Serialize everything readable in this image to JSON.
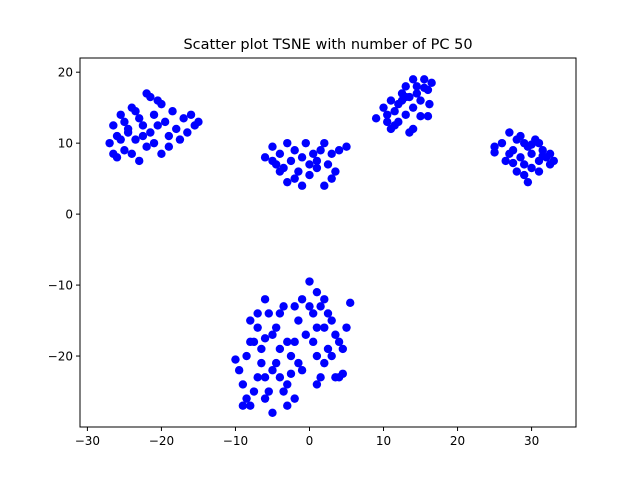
{
  "chart_data": {
    "type": "scatter",
    "title": "Scatter plot TSNE with  number of PC 50",
    "xlabel": "",
    "ylabel": "",
    "xlim": [
      -31,
      36
    ],
    "ylim": [
      -30,
      22
    ],
    "x_ticks": [
      -30,
      -20,
      -10,
      0,
      10,
      20,
      30
    ],
    "x_tick_labels": [
      "−30",
      "−20",
      "−10",
      "0",
      "10",
      "20",
      "30"
    ],
    "y_ticks": [
      20,
      10,
      0,
      -10,
      -20
    ],
    "y_tick_labels": [
      "20",
      "10",
      "0",
      "−10",
      "−20"
    ],
    "grid": false,
    "legend": "none",
    "marker_color": "#0000ff",
    "series": [
      {
        "points": [
          [
            -27,
            10
          ],
          [
            -26.5,
            12.5
          ],
          [
            -26,
            11
          ],
          [
            -25.5,
            14
          ],
          [
            -25,
            13
          ],
          [
            -24.5,
            12
          ],
          [
            -24,
            15
          ],
          [
            -23.5,
            10.5
          ],
          [
            -23,
            13.5
          ],
          [
            -22.5,
            11
          ],
          [
            -22,
            17
          ],
          [
            -21.5,
            16.5
          ],
          [
            -21,
            14
          ],
          [
            -20.5,
            12.5
          ],
          [
            -20,
            15.5
          ],
          [
            -19.5,
            13
          ],
          [
            -19,
            11
          ],
          [
            -18.5,
            14.5
          ],
          [
            -18,
            12
          ],
          [
            -17.5,
            10.5
          ],
          [
            -17,
            13.5
          ],
          [
            -16.5,
            11.5
          ],
          [
            -16,
            14
          ],
          [
            -15.5,
            12.5
          ],
          [
            -15,
            13
          ],
          [
            -26,
            8
          ],
          [
            -25,
            9
          ],
          [
            -24,
            8.5
          ],
          [
            -23,
            7.5
          ],
          [
            -22,
            9.5
          ],
          [
            -21,
            10
          ],
          [
            -20,
            8.5
          ],
          [
            -19,
            9.5
          ],
          [
            -24.5,
            11.5
          ],
          [
            -23.5,
            14.5
          ],
          [
            -22.5,
            12.5
          ],
          [
            -21.5,
            11.5
          ],
          [
            -20.5,
            16
          ],
          [
            -25.5,
            10.5
          ],
          [
            -26.5,
            8.5
          ]
        ]
      },
      {
        "points": [
          [
            -6,
            8
          ],
          [
            -5,
            9.5
          ],
          [
            -4.5,
            7
          ],
          [
            -4,
            8.5
          ],
          [
            -3.5,
            6.5
          ],
          [
            -3,
            10
          ],
          [
            -2.5,
            7.5
          ],
          [
            -2,
            9
          ],
          [
            -1.5,
            6
          ],
          [
            -1,
            8
          ],
          [
            -0.5,
            10
          ],
          [
            0,
            7
          ],
          [
            0.5,
            8.5
          ],
          [
            1,
            6.5
          ],
          [
            1.5,
            9
          ],
          [
            2,
            4
          ],
          [
            2.5,
            7
          ],
          [
            3,
            8.5
          ],
          [
            3.5,
            6
          ],
          [
            4,
            9
          ],
          [
            5,
            9.5
          ],
          [
            -3,
            4.5
          ],
          [
            -1,
            4
          ],
          [
            2,
            10
          ],
          [
            0,
            5.5
          ],
          [
            -2,
            5
          ],
          [
            1,
            7.5
          ],
          [
            -4,
            6
          ],
          [
            3,
            5
          ],
          [
            -5,
            7.5
          ]
        ]
      },
      {
        "points": [
          [
            9,
            13.5
          ],
          [
            10,
            15
          ],
          [
            10.5,
            14
          ],
          [
            11,
            16
          ],
          [
            11.5,
            12.5
          ],
          [
            12,
            15.5
          ],
          [
            12.5,
            17
          ],
          [
            13,
            14
          ],
          [
            13.5,
            16.5
          ],
          [
            14,
            12
          ],
          [
            14.5,
            18
          ],
          [
            15,
            16
          ],
          [
            15.5,
            19
          ],
          [
            16,
            17.5
          ],
          [
            16.5,
            18.5
          ],
          [
            13,
            18
          ],
          [
            12,
            13
          ],
          [
            14,
            15
          ],
          [
            15,
            13.8
          ],
          [
            11,
            12
          ],
          [
            13.5,
            11.5
          ],
          [
            16,
            13.8
          ],
          [
            14.5,
            17
          ],
          [
            12.5,
            16
          ],
          [
            15.5,
            17.8
          ],
          [
            10.5,
            13
          ],
          [
            13,
            16.5
          ],
          [
            14,
            19
          ],
          [
            11.5,
            14.5
          ],
          [
            16.2,
            15.5
          ]
        ]
      },
      {
        "points": [
          [
            25,
            9.5
          ],
          [
            26,
            10
          ],
          [
            27,
            11.5
          ],
          [
            27.5,
            9
          ],
          [
            28,
            10.5
          ],
          [
            28.5,
            8
          ],
          [
            29,
            7
          ],
          [
            29.5,
            9.5
          ],
          [
            30,
            8.5
          ],
          [
            30.5,
            10.5
          ],
          [
            31,
            7.5
          ],
          [
            31.5,
            9
          ],
          [
            32,
            8
          ],
          [
            32.5,
            7
          ],
          [
            33,
            7.5
          ],
          [
            28,
            6
          ],
          [
            29.5,
            4.5
          ],
          [
            30,
            6.5
          ],
          [
            31,
            6
          ],
          [
            27,
            8.5
          ],
          [
            26.5,
            7.5
          ],
          [
            29,
            10
          ],
          [
            31.5,
            8.2
          ],
          [
            32.5,
            8.5
          ],
          [
            28.5,
            11
          ],
          [
            30,
            9.8
          ],
          [
            27.5,
            7.2
          ],
          [
            31,
            10
          ],
          [
            29,
            5.5
          ],
          [
            25,
            8.7
          ]
        ]
      },
      {
        "points": [
          [
            -10,
            -20.5
          ],
          [
            -9.5,
            -22
          ],
          [
            -9,
            -24
          ],
          [
            -8.5,
            -26
          ],
          [
            -8,
            -27
          ],
          [
            -7.5,
            -18
          ],
          [
            -7,
            -16
          ],
          [
            -6.5,
            -19
          ],
          [
            -6,
            -12
          ],
          [
            -5.5,
            -14
          ],
          [
            -5,
            -17
          ],
          [
            -4.5,
            -21
          ],
          [
            -4,
            -23
          ],
          [
            -3.5,
            -25
          ],
          [
            -3,
            -27
          ],
          [
            -2.5,
            -20
          ],
          [
            -2,
            -18
          ],
          [
            -1.5,
            -15
          ],
          [
            -1,
            -12
          ],
          [
            -0.5,
            -17
          ],
          [
            0,
            -9.5
          ],
          [
            0.5,
            -14
          ],
          [
            1,
            -11
          ],
          [
            1.5,
            -13
          ],
          [
            2,
            -16
          ],
          [
            2.5,
            -19
          ],
          [
            3,
            -20
          ],
          [
            3.5,
            -23
          ],
          [
            4,
            -18
          ],
          [
            4.5,
            -22.5
          ],
          [
            5,
            -16
          ],
          [
            5.5,
            -12.5
          ],
          [
            -8,
            -15
          ],
          [
            -7,
            -23
          ],
          [
            -6,
            -26
          ],
          [
            -5,
            -28
          ],
          [
            -4,
            -19
          ],
          [
            -3,
            -24
          ],
          [
            -2,
            -26
          ],
          [
            -1,
            -22
          ],
          [
            1,
            -24
          ],
          [
            2,
            -21
          ],
          [
            3,
            -15
          ],
          [
            -9,
            -27
          ],
          [
            -6.5,
            -21
          ],
          [
            -5.5,
            -25
          ],
          [
            -4.5,
            -16
          ],
          [
            -3.5,
            -13
          ],
          [
            -2.5,
            -22.5
          ],
          [
            0.5,
            -18
          ],
          [
            1.5,
            -23
          ],
          [
            2.5,
            -14
          ],
          [
            3.5,
            -17
          ],
          [
            4.5,
            -19
          ],
          [
            -7.5,
            -25
          ],
          [
            -8.5,
            -20
          ],
          [
            -6,
            -17.5
          ],
          [
            -1.5,
            -21
          ],
          [
            0,
            -13
          ],
          [
            1,
            -20
          ],
          [
            -4,
            -14
          ],
          [
            -3,
            -18
          ],
          [
            -7,
            -14
          ],
          [
            -5,
            -22
          ],
          [
            2,
            -12
          ],
          [
            -8,
            -18
          ],
          [
            -6,
            -23
          ],
          [
            4,
            -23
          ],
          [
            -2,
            -13
          ],
          [
            1,
            -16
          ]
        ]
      }
    ]
  }
}
